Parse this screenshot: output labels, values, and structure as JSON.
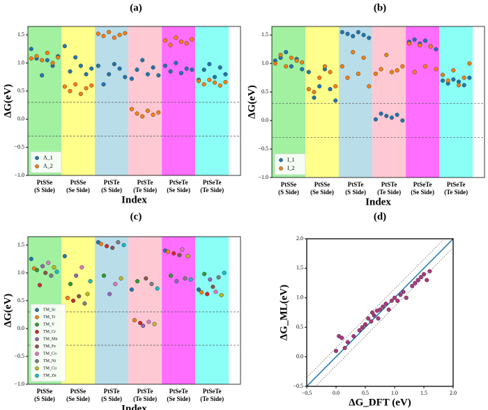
{
  "chart_data": [
    {
      "type": "scatter",
      "title": "(a)",
      "xlabel": "Index",
      "ylabel": "ΔG(eV)",
      "legend": "lower left",
      "xlim": [
        0,
        63.5
      ],
      "ylim": [
        -1.0,
        1.65
      ],
      "yticks": [
        {
          "value": -1,
          "label": "−1.0"
        },
        {
          "value": -0.5,
          "label": "−0.5"
        },
        {
          "value": 0,
          "label": "0.0"
        },
        0.5,
        {
          "value": 1,
          "label": "1.0"
        },
        1.5
      ],
      "reference_lines": [
        0.3,
        -0.3
      ],
      "bands": [
        {
          "label": [
            "PtSSe",
            "(S Side)"
          ],
          "color": "#90ee90",
          "range": [
            0,
            10
          ]
        },
        {
          "label": [
            "PtSSe",
            "(Se Side)"
          ],
          "color": "#ffff77",
          "range": [
            10,
            20
          ]
        },
        {
          "label": [
            "PtSTe",
            "(S Side)"
          ],
          "color": "#add8e6",
          "range": [
            20,
            30
          ]
        },
        {
          "label": [
            "PtSTe",
            "(Te Side)"
          ],
          "color": "#ffc0cb",
          "range": [
            30,
            40
          ]
        },
        {
          "label": [
            "PtSeTe",
            "(Se Side)"
          ],
          "color": "#ff55ff",
          "range": [
            40,
            50
          ]
        },
        {
          "label": [
            "PtSeTe",
            "(Te Side)"
          ],
          "color": "#77fff5",
          "range": [
            50,
            60
          ]
        }
      ],
      "x": [
        1,
        2.6,
        4.2,
        5.8,
        7.4,
        9,
        11,
        12.6,
        14.2,
        15.8,
        17.4,
        19,
        21,
        22.6,
        24.2,
        25.8,
        27.4,
        29,
        31,
        32.6,
        34.2,
        35.8,
        37.4,
        39,
        41,
        42.6,
        44.2,
        45.8,
        47.4,
        49,
        51,
        52.6,
        54.2,
        55.8,
        57.4,
        59
      ],
      "series": [
        {
          "name": "Λ_1",
          "color": "#1f77b4",
          "values": [
            1.25,
            1.08,
            0.78,
            1.05,
            0.95,
            1.12,
            1.3,
            0.85,
            1.1,
            0.95,
            0.8,
            0.9,
            0.95,
            0.62,
            0.8,
            0.98,
            0.9,
            0.75,
            0.72,
            0.88,
            1.05,
            0.8,
            0.92,
            0.78,
            0.95,
            0.85,
            1.0,
            0.82,
            0.9,
            0.88,
            0.7,
            0.88,
            0.98,
            0.75,
            0.92,
            0.8
          ]
        },
        {
          "name": "Λ_2",
          "color": "#ff7f0e",
          "values": [
            1.08,
            1.12,
            1.05,
            1.18,
            1.0,
            1.1,
            0.58,
            0.5,
            0.62,
            0.45,
            0.55,
            0.6,
            1.52,
            1.48,
            1.55,
            1.45,
            1.5,
            1.53,
            0.18,
            0.1,
            0.05,
            0.15,
            0.08,
            0.12,
            1.4,
            1.32,
            1.45,
            1.38,
            1.35,
            1.42,
            0.68,
            0.62,
            0.7,
            0.65,
            0.6,
            0.66
          ]
        }
      ]
    },
    {
      "type": "scatter",
      "title": "(b)",
      "xlabel": "Index",
      "ylabel": "ΔG(eV)",
      "legend": "lower left",
      "xlim": [
        0,
        63.5
      ],
      "ylim": [
        -1.0,
        1.65
      ],
      "yticks": [
        {
          "value": -1,
          "label": "−1.0"
        },
        {
          "value": -0.5,
          "label": "−0.5"
        },
        {
          "value": 0,
          "label": "0.0"
        },
        0.5,
        {
          "value": 1,
          "label": "1.0"
        },
        1.5
      ],
      "reference_lines": [
        0.3,
        -0.3
      ],
      "bands": [
        {
          "label": [
            "PtSSe",
            "(S Side)"
          ],
          "color": "#90ee90",
          "range": [
            0,
            10
          ]
        },
        {
          "label": [
            "PtSSe",
            "(Se Side)"
          ],
          "color": "#ffff77",
          "range": [
            10,
            20
          ]
        },
        {
          "label": [
            "PtSTe",
            "(S Side)"
          ],
          "color": "#add8e6",
          "range": [
            20,
            30
          ]
        },
        {
          "label": [
            "PtSTe",
            "(Te Side)"
          ],
          "color": "#ffc0cb",
          "range": [
            30,
            40
          ]
        },
        {
          "label": [
            "PtSeTe",
            "(Se Side)"
          ],
          "color": "#ff55ff",
          "range": [
            40,
            50
          ]
        },
        {
          "label": [
            "PtSeTe",
            "(Te Side)"
          ],
          "color": "#77fff5",
          "range": [
            50,
            60
          ]
        }
      ],
      "x": [
        1,
        2.6,
        4.2,
        5.8,
        7.4,
        9,
        11,
        12.6,
        14.2,
        15.8,
        17.4,
        19,
        21,
        22.6,
        24.2,
        25.8,
        27.4,
        29,
        31,
        32.6,
        34.2,
        35.8,
        37.4,
        39,
        41,
        42.6,
        44.2,
        45.8,
        47.4,
        49,
        51,
        52.6,
        54.2,
        55.8,
        57.4,
        59
      ],
      "series": [
        {
          "name": "I_1",
          "color": "#1f77b4",
          "values": [
            1.05,
            1.1,
            1.2,
            0.95,
            1.08,
            0.9,
            0.85,
            0.4,
            0.6,
            0.9,
            0.55,
            0.35,
            1.55,
            1.52,
            1.48,
            1.55,
            1.5,
            1.45,
            0.02,
            0.12,
            0.08,
            0.05,
            0.1,
            0.0,
            1.38,
            1.42,
            1.35,
            1.4,
            1.3,
            1.25,
            0.7,
            0.65,
            0.72,
            0.68,
            0.62,
            0.75
          ]
        },
        {
          "name": "I_2",
          "color": "#ff7f0e",
          "values": [
            1.0,
            1.15,
            0.95,
            1.1,
            1.05,
            1.02,
            0.55,
            0.5,
            0.75,
            0.95,
            0.85,
            0.6,
            0.95,
            0.75,
            1.2,
            0.82,
            1.1,
            0.6,
            0.82,
            0.9,
            1.15,
            0.85,
            0.88,
            0.95,
            1.35,
            0.85,
            1.32,
            0.95,
            1.3,
            0.9,
            0.8,
            0.7,
            0.88,
            0.62,
            0.75,
            1.0
          ]
        }
      ]
    },
    {
      "type": "scatter",
      "title": "(c)",
      "xlabel": "Index",
      "ylabel": "ΔG(eV)",
      "legend": "lower left",
      "xlim": [
        0,
        63.5
      ],
      "ylim": [
        -1.0,
        1.65
      ],
      "yticks": [
        {
          "value": -1,
          "label": "−1.0"
        },
        {
          "value": -0.5,
          "label": "−0.5"
        },
        {
          "value": 0,
          "label": "0.0"
        },
        0.5,
        {
          "value": 1,
          "label": "1.0"
        },
        1.5
      ],
      "reference_lines": [
        0.3,
        -0.3
      ],
      "bands": [
        {
          "label": [
            "PtSSe",
            "(S Side)"
          ],
          "color": "#90ee90",
          "range": [
            0,
            10
          ]
        },
        {
          "label": [
            "PtSSe",
            "(Se Side)"
          ],
          "color": "#ffff77",
          "range": [
            10,
            20
          ]
        },
        {
          "label": [
            "PtSTe",
            "(S Side)"
          ],
          "color": "#add8e6",
          "range": [
            20,
            30
          ]
        },
        {
          "label": [
            "PtSTe",
            "(Te Side)"
          ],
          "color": "#ffc0cb",
          "range": [
            30,
            40
          ]
        },
        {
          "label": [
            "PtSeTe",
            "(Se Side)"
          ],
          "color": "#ff55ff",
          "range": [
            40,
            50
          ]
        },
        {
          "label": [
            "PtSeTe",
            "(Te Side)"
          ],
          "color": "#77fff5",
          "range": [
            50,
            60
          ]
        }
      ],
      "series": [
        {
          "name": "TM_Sc",
          "color": "#1f77b4",
          "x": [
            1,
            11,
            21,
            31,
            41,
            51
          ],
          "values": [
            1.25,
            1.3,
            1.55,
            0.7,
            1.4,
            0.7
          ]
        },
        {
          "name": "TM_Ti",
          "color": "#ff7f0e",
          "x": [
            1.85,
            11.85,
            21.85,
            31.85,
            41.85,
            51.85
          ],
          "values": [
            1.08,
            0.55,
            1.52,
            0.15,
            1.38,
            0.65
          ]
        },
        {
          "name": "TM_V",
          "color": "#2ca02c",
          "x": [
            2.7,
            12.7,
            22.7,
            32.7,
            42.7,
            52.7
          ],
          "values": [
            1.05,
            0.8,
            0.95,
            0.85,
            0.95,
            0.98
          ]
        },
        {
          "name": "TM_Cr",
          "color": "#d62728",
          "x": [
            3.55,
            13.55,
            23.55,
            33.55,
            43.55,
            53.55
          ],
          "values": [
            0.78,
            0.5,
            1.48,
            0.1,
            1.35,
            0.62
          ]
        },
        {
          "name": "TM_Mn",
          "color": "#9467bd",
          "x": [
            4.4,
            14.4,
            24.4,
            34.4,
            44.4,
            54.4
          ],
          "values": [
            1.12,
            0.95,
            0.62,
            0.05,
            0.85,
            0.88
          ]
        },
        {
          "name": "TM_Fe",
          "color": "#8c564b",
          "x": [
            5.25,
            15.25,
            25.25,
            35.25,
            45.25,
            55.25
          ],
          "values": [
            1.0,
            0.58,
            1.45,
            0.9,
            1.32,
            0.75
          ]
        },
        {
          "name": "TM_Co",
          "color": "#e377c2",
          "x": [
            6.1,
            16.1,
            26.1,
            36.1,
            46.1,
            56.1
          ],
          "values": [
            1.18,
            1.1,
            0.8,
            0.12,
            1.42,
            0.66
          ]
        },
        {
          "name": "TM_Ni",
          "color": "#7f7f7f",
          "x": [
            6.95,
            16.95,
            26.95,
            36.95,
            46.95,
            56.95
          ],
          "values": [
            0.95,
            0.45,
            1.55,
            0.8,
            0.9,
            0.92
          ]
        },
        {
          "name": "TM_Cu",
          "color": "#bcbd22",
          "x": [
            7.8,
            17.8,
            27.8,
            37.8,
            47.8,
            57.8
          ],
          "values": [
            1.1,
            0.62,
            0.9,
            0.08,
            1.3,
            0.6
          ]
        },
        {
          "name": "TM_Zn",
          "color": "#17becf",
          "x": [
            8.65,
            18.65,
            28.65,
            38.65,
            48.65,
            58.65
          ],
          "values": [
            1.02,
            0.85,
            1.5,
            0.72,
            0.88,
            1.0
          ]
        }
      ]
    },
    {
      "type": "parity",
      "title": "(d)",
      "xlabel": "ΔG_DFT (eV)",
      "ylabel": "ΔG_ML(eV)",
      "xlim": [
        -0.5,
        2.0
      ],
      "ylim": [
        -0.5,
        2.0
      ],
      "xticks": [
        {
          "value": -0.5,
          "label": "−0.5"
        },
        {
          "value": 0,
          "label": "0.0"
        },
        0.5,
        {
          "value": 1,
          "label": "1.0"
        },
        1.5,
        {
          "value": 2,
          "label": "2.0"
        }
      ],
      "yticks": [
        {
          "value": -0.5,
          "label": "−0.5"
        },
        {
          "value": 0,
          "label": "0.0"
        },
        0.5,
        {
          "value": 1,
          "label": "1.0"
        },
        1.5,
        {
          "value": 2,
          "label": "2.0"
        }
      ],
      "parity_color": "#1f77b4",
      "tolerance": 0.15,
      "x": [
        0.0,
        0.05,
        0.1,
        0.15,
        0.2,
        0.3,
        0.4,
        0.45,
        0.5,
        0.55,
        0.6,
        0.62,
        0.65,
        0.7,
        0.72,
        0.75,
        0.8,
        0.85,
        0.9,
        0.95,
        1.0,
        1.05,
        1.1,
        1.15,
        1.2,
        1.3,
        1.35,
        1.4,
        1.45,
        1.5,
        1.55,
        1.6
      ],
      "series": [
        {
          "color": "#b0357f",
          "values": [
            0.1,
            0.35,
            0.32,
            0.15,
            0.25,
            0.35,
            0.45,
            0.5,
            0.55,
            0.65,
            0.6,
            0.75,
            0.7,
            0.78,
            0.65,
            0.8,
            0.85,
            0.9,
            0.8,
            0.95,
            1.0,
            0.95,
            1.05,
            1.1,
            1.0,
            1.2,
            1.25,
            1.3,
            1.35,
            1.4,
            1.3,
            1.45
          ]
        }
      ]
    }
  ]
}
